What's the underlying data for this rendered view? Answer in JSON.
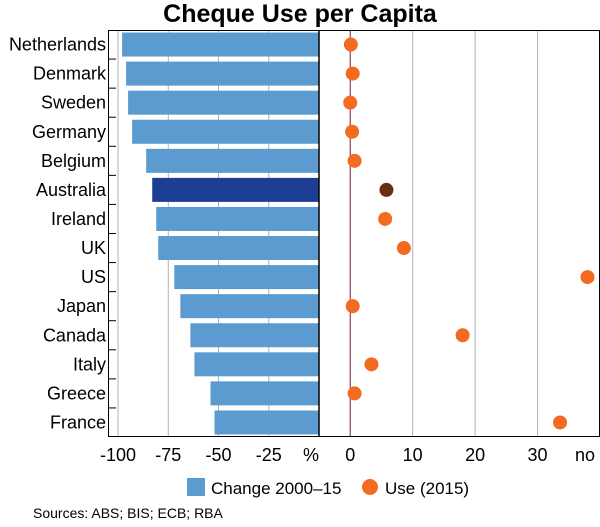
{
  "chart_data": {
    "type": "bar",
    "title": "Cheque Use per Capita",
    "categories": [
      "Netherlands",
      "Denmark",
      "Sweden",
      "Germany",
      "Belgium",
      "Australia",
      "Ireland",
      "UK",
      "US",
      "Japan",
      "Canada",
      "Italy",
      "Greece",
      "France"
    ],
    "highlight": "Australia",
    "left_panel": {
      "type": "bar",
      "series": [
        {
          "name": "Change 2000–15",
          "values": [
            -98,
            -96,
            -95,
            -93,
            -86,
            -83,
            -81,
            -80,
            -72,
            -69,
            -64,
            -62,
            -54,
            -52
          ]
        }
      ],
      "xlim": [
        -105,
        0
      ],
      "ticks": [
        "-100",
        "-75",
        "-50",
        "-25"
      ],
      "tick_values": [
        -100,
        -75,
        -50,
        -25
      ],
      "unit_label": "%"
    },
    "right_panel": {
      "type": "scatter",
      "series": [
        {
          "name": "Use (2015)",
          "values": [
            0.1,
            0.4,
            0.0,
            0.3,
            0.7,
            5.8,
            5.6,
            8.6,
            38.0,
            0.4,
            18.0,
            3.4,
            0.7,
            33.6
          ]
        }
      ],
      "xlim": [
        -5,
        40
      ],
      "ticks": [
        "0",
        "10",
        "20",
        "30"
      ],
      "tick_values": [
        0,
        10,
        20,
        30
      ],
      "unit_label": "no"
    },
    "colors": {
      "bar": "#5B9BD0",
      "bar_highlight": "#1C3E94",
      "dot": "#F36B21",
      "dot_highlight": "#6B2E12",
      "grid": "#b3b3b3",
      "frame": "#000000",
      "zero_line": "#7A1A3A"
    },
    "legend": {
      "placement": "bottom",
      "items": [
        "Change 2000–15",
        "Use (2015)"
      ]
    }
  },
  "source": "Sources: ABS; BIS; ECB; RBA"
}
